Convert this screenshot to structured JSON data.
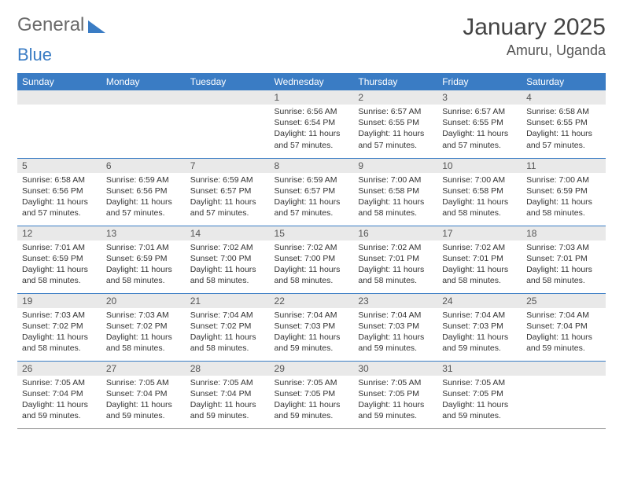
{
  "logo": {
    "word1": "General",
    "word2": "Blue"
  },
  "title": "January 2025",
  "location": "Amuru, Uganda",
  "colors": {
    "brand": "#3a7cc4",
    "header_bg": "#3a7cc4",
    "header_text": "#ffffff",
    "datebar_bg": "#e9e9e9",
    "row_border": "#3a7cc4",
    "text": "#333333",
    "title_text": "#444444",
    "logo_gray": "#6a6a6a"
  },
  "day_headers": [
    "Sunday",
    "Monday",
    "Tuesday",
    "Wednesday",
    "Thursday",
    "Friday",
    "Saturday"
  ],
  "weeks": [
    [
      {
        "date": "",
        "lines": []
      },
      {
        "date": "",
        "lines": []
      },
      {
        "date": "",
        "lines": []
      },
      {
        "date": "1",
        "lines": [
          "Sunrise: 6:56 AM",
          "Sunset: 6:54 PM",
          "Daylight: 11 hours and 57 minutes."
        ]
      },
      {
        "date": "2",
        "lines": [
          "Sunrise: 6:57 AM",
          "Sunset: 6:55 PM",
          "Daylight: 11 hours and 57 minutes."
        ]
      },
      {
        "date": "3",
        "lines": [
          "Sunrise: 6:57 AM",
          "Sunset: 6:55 PM",
          "Daylight: 11 hours and 57 minutes."
        ]
      },
      {
        "date": "4",
        "lines": [
          "Sunrise: 6:58 AM",
          "Sunset: 6:55 PM",
          "Daylight: 11 hours and 57 minutes."
        ]
      }
    ],
    [
      {
        "date": "5",
        "lines": [
          "Sunrise: 6:58 AM",
          "Sunset: 6:56 PM",
          "Daylight: 11 hours and 57 minutes."
        ]
      },
      {
        "date": "6",
        "lines": [
          "Sunrise: 6:59 AM",
          "Sunset: 6:56 PM",
          "Daylight: 11 hours and 57 minutes."
        ]
      },
      {
        "date": "7",
        "lines": [
          "Sunrise: 6:59 AM",
          "Sunset: 6:57 PM",
          "Daylight: 11 hours and 57 minutes."
        ]
      },
      {
        "date": "8",
        "lines": [
          "Sunrise: 6:59 AM",
          "Sunset: 6:57 PM",
          "Daylight: 11 hours and 57 minutes."
        ]
      },
      {
        "date": "9",
        "lines": [
          "Sunrise: 7:00 AM",
          "Sunset: 6:58 PM",
          "Daylight: 11 hours and 58 minutes."
        ]
      },
      {
        "date": "10",
        "lines": [
          "Sunrise: 7:00 AM",
          "Sunset: 6:58 PM",
          "Daylight: 11 hours and 58 minutes."
        ]
      },
      {
        "date": "11",
        "lines": [
          "Sunrise: 7:00 AM",
          "Sunset: 6:59 PM",
          "Daylight: 11 hours and 58 minutes."
        ]
      }
    ],
    [
      {
        "date": "12",
        "lines": [
          "Sunrise: 7:01 AM",
          "Sunset: 6:59 PM",
          "Daylight: 11 hours and 58 minutes."
        ]
      },
      {
        "date": "13",
        "lines": [
          "Sunrise: 7:01 AM",
          "Sunset: 6:59 PM",
          "Daylight: 11 hours and 58 minutes."
        ]
      },
      {
        "date": "14",
        "lines": [
          "Sunrise: 7:02 AM",
          "Sunset: 7:00 PM",
          "Daylight: 11 hours and 58 minutes."
        ]
      },
      {
        "date": "15",
        "lines": [
          "Sunrise: 7:02 AM",
          "Sunset: 7:00 PM",
          "Daylight: 11 hours and 58 minutes."
        ]
      },
      {
        "date": "16",
        "lines": [
          "Sunrise: 7:02 AM",
          "Sunset: 7:01 PM",
          "Daylight: 11 hours and 58 minutes."
        ]
      },
      {
        "date": "17",
        "lines": [
          "Sunrise: 7:02 AM",
          "Sunset: 7:01 PM",
          "Daylight: 11 hours and 58 minutes."
        ]
      },
      {
        "date": "18",
        "lines": [
          "Sunrise: 7:03 AM",
          "Sunset: 7:01 PM",
          "Daylight: 11 hours and 58 minutes."
        ]
      }
    ],
    [
      {
        "date": "19",
        "lines": [
          "Sunrise: 7:03 AM",
          "Sunset: 7:02 PM",
          "Daylight: 11 hours and 58 minutes."
        ]
      },
      {
        "date": "20",
        "lines": [
          "Sunrise: 7:03 AM",
          "Sunset: 7:02 PM",
          "Daylight: 11 hours and 58 minutes."
        ]
      },
      {
        "date": "21",
        "lines": [
          "Sunrise: 7:04 AM",
          "Sunset: 7:02 PM",
          "Daylight: 11 hours and 58 minutes."
        ]
      },
      {
        "date": "22",
        "lines": [
          "Sunrise: 7:04 AM",
          "Sunset: 7:03 PM",
          "Daylight: 11 hours and 59 minutes."
        ]
      },
      {
        "date": "23",
        "lines": [
          "Sunrise: 7:04 AM",
          "Sunset: 7:03 PM",
          "Daylight: 11 hours and 59 minutes."
        ]
      },
      {
        "date": "24",
        "lines": [
          "Sunrise: 7:04 AM",
          "Sunset: 7:03 PM",
          "Daylight: 11 hours and 59 minutes."
        ]
      },
      {
        "date": "25",
        "lines": [
          "Sunrise: 7:04 AM",
          "Sunset: 7:04 PM",
          "Daylight: 11 hours and 59 minutes."
        ]
      }
    ],
    [
      {
        "date": "26",
        "lines": [
          "Sunrise: 7:05 AM",
          "Sunset: 7:04 PM",
          "Daylight: 11 hours and 59 minutes."
        ]
      },
      {
        "date": "27",
        "lines": [
          "Sunrise: 7:05 AM",
          "Sunset: 7:04 PM",
          "Daylight: 11 hours and 59 minutes."
        ]
      },
      {
        "date": "28",
        "lines": [
          "Sunrise: 7:05 AM",
          "Sunset: 7:04 PM",
          "Daylight: 11 hours and 59 minutes."
        ]
      },
      {
        "date": "29",
        "lines": [
          "Sunrise: 7:05 AM",
          "Sunset: 7:05 PM",
          "Daylight: 11 hours and 59 minutes."
        ]
      },
      {
        "date": "30",
        "lines": [
          "Sunrise: 7:05 AM",
          "Sunset: 7:05 PM",
          "Daylight: 11 hours and 59 minutes."
        ]
      },
      {
        "date": "31",
        "lines": [
          "Sunrise: 7:05 AM",
          "Sunset: 7:05 PM",
          "Daylight: 11 hours and 59 minutes."
        ]
      },
      {
        "date": "",
        "lines": []
      }
    ]
  ]
}
